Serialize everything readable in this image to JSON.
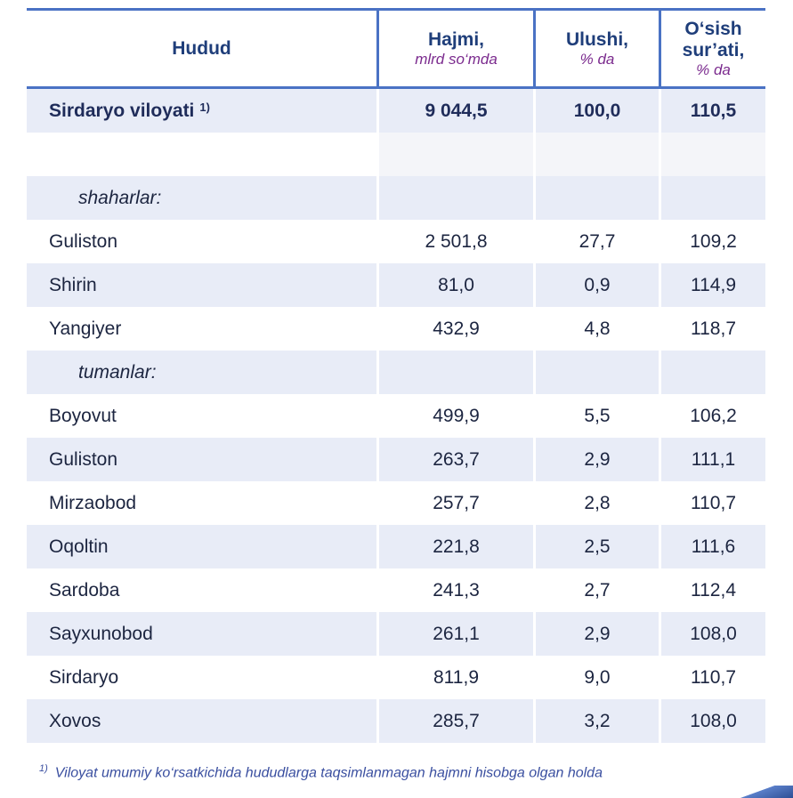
{
  "header": {
    "col1": "Hudud",
    "col2": "Hajmi,",
    "col2_unit": "mlrd so‘mda",
    "col3": "Ulushi,",
    "col3_unit": "% da",
    "col4_line1": "O‘sish",
    "col4_line2": "sur’ati,",
    "col4_unit": "% da"
  },
  "total": {
    "name": "Sirdaryo viloyati",
    "mark": "1)",
    "volume": "9 044,5",
    "share": "100,0",
    "growth": "110,5"
  },
  "section_cities": "shaharlar:",
  "cities": [
    {
      "name": "Guliston",
      "volume": "2 501,8",
      "share": "27,7",
      "growth": "109,2"
    },
    {
      "name": "Shirin",
      "volume": "81,0",
      "share": "0,9",
      "growth": "114,9"
    },
    {
      "name": "Yangiyer",
      "volume": "432,9",
      "share": "4,8",
      "growth": "118,7"
    }
  ],
  "section_districts": "tumanlar:",
  "districts": [
    {
      "name": "Boyovut",
      "volume": "499,9",
      "share": "5,5",
      "growth": "106,2"
    },
    {
      "name": "Guliston",
      "volume": "263,7",
      "share": "2,9",
      "growth": "111,1"
    },
    {
      "name": "Mirzaobod",
      "volume": "257,7",
      "share": "2,8",
      "growth": "110,7"
    },
    {
      "name": "Oqoltin",
      "volume": "221,8",
      "share": "2,5",
      "growth": "111,6"
    },
    {
      "name": "Sardoba",
      "volume": "241,3",
      "share": "2,7",
      "growth": "112,4"
    },
    {
      "name": "Sayxunobod",
      "volume": "261,1",
      "share": "2,9",
      "growth": "108,0"
    },
    {
      "name": "Sirdaryo",
      "volume": "811,9",
      "share": "9,0",
      "growth": "110,7"
    },
    {
      "name": "Xovos",
      "volume": "285,7",
      "share": "3,2",
      "growth": "108,0"
    }
  ],
  "footnote": {
    "mark": "1)",
    "text": "Viloyat umumiy ko‘rsatkichida hududlarga taqsimlanmagan hajmni hisobga olgan holda"
  },
  "colors": {
    "accent": "#4a72c4",
    "shade": "#e8ecf7",
    "title": "#1f3e7a",
    "unit": "#7b2b8e"
  }
}
